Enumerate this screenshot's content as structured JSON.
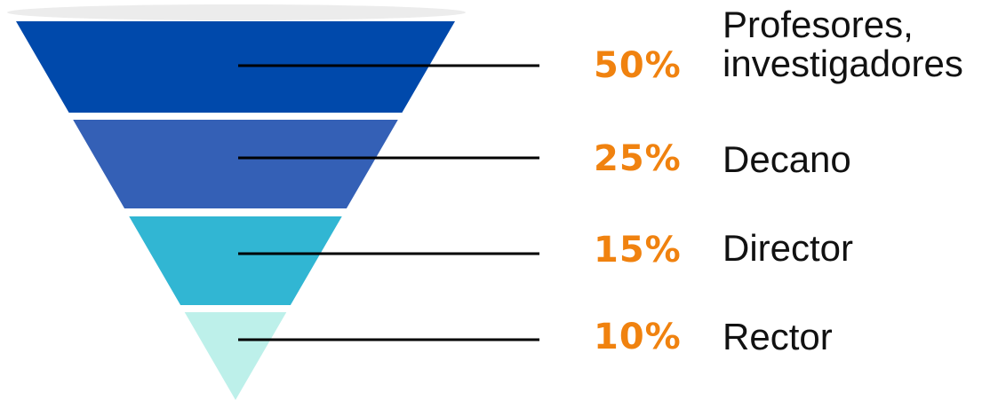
{
  "chart_data": {
    "type": "funnel",
    "stages": [
      {
        "percent_label": "50%",
        "label": "Profesores,\ninvestigadores",
        "value": 50,
        "color": "#0049AB"
      },
      {
        "percent_label": "25%",
        "label": "Decano",
        "value": 25,
        "color": "#3460B6"
      },
      {
        "percent_label": "15%",
        "label": "Director",
        "value": 15,
        "color": "#31B6D3"
      },
      {
        "percent_label": "10%",
        "label": "Rector",
        "value": 10,
        "color": "#BDF0EA"
      }
    ],
    "percent_color": "#F0820F",
    "leader_line_color": "#000000"
  }
}
